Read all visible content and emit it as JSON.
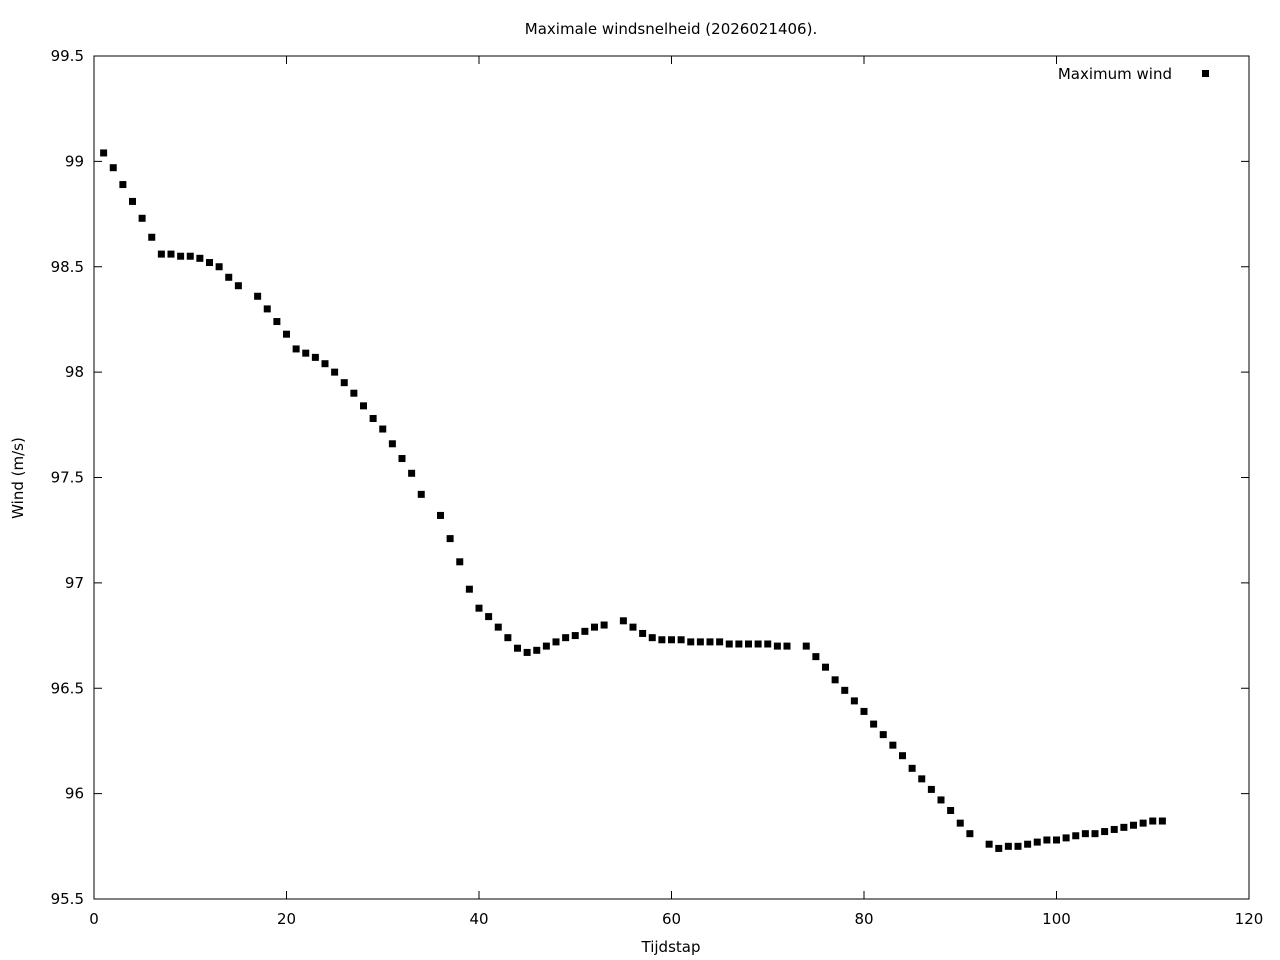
{
  "chart_data": {
    "type": "scatter",
    "title": "Maximale windsnelheid (2026021406).",
    "xlabel": "Tijdstap",
    "ylabel": "Wind (m/s)",
    "xlim": [
      0,
      120
    ],
    "ylim": [
      95.5,
      99.5
    ],
    "x_ticks": [
      "0",
      "20",
      "40",
      "60",
      "80",
      "100",
      "120"
    ],
    "y_ticks": [
      "95.5",
      "96",
      "96.5",
      "97",
      "97.5",
      "98",
      "98.5",
      "99",
      "99.5"
    ],
    "grid": false,
    "legend_position": "top-right",
    "series": [
      {
        "name": "Maximum wind",
        "marker": "square",
        "color": "#000000",
        "points": [
          [
            1,
            99.04
          ],
          [
            2,
            98.97
          ],
          [
            3,
            98.89
          ],
          [
            4,
            98.81
          ],
          [
            5,
            98.73
          ],
          [
            6,
            98.64
          ],
          [
            7,
            98.56
          ],
          [
            8,
            98.56
          ],
          [
            9,
            98.55
          ],
          [
            10,
            98.55
          ],
          [
            11,
            98.54
          ],
          [
            12,
            98.52
          ],
          [
            13,
            98.5
          ],
          [
            14,
            98.45
          ],
          [
            15,
            98.41
          ],
          [
            17,
            98.36
          ],
          [
            18,
            98.3
          ],
          [
            19,
            98.24
          ],
          [
            20,
            98.18
          ],
          [
            21,
            98.11
          ],
          [
            22,
            98.09
          ],
          [
            23,
            98.07
          ],
          [
            24,
            98.04
          ],
          [
            25,
            98.0
          ],
          [
            26,
            97.95
          ],
          [
            27,
            97.9
          ],
          [
            28,
            97.84
          ],
          [
            29,
            97.78
          ],
          [
            30,
            97.73
          ],
          [
            31,
            97.66
          ],
          [
            32,
            97.59
          ],
          [
            33,
            97.52
          ],
          [
            34,
            97.42
          ],
          [
            36,
            97.32
          ],
          [
            37,
            97.21
          ],
          [
            38,
            97.1
          ],
          [
            39,
            96.97
          ],
          [
            40,
            96.88
          ],
          [
            41,
            96.84
          ],
          [
            42,
            96.79
          ],
          [
            43,
            96.74
          ],
          [
            44,
            96.69
          ],
          [
            45,
            96.67
          ],
          [
            46,
            96.68
          ],
          [
            47,
            96.7
          ],
          [
            48,
            96.72
          ],
          [
            49,
            96.74
          ],
          [
            50,
            96.75
          ],
          [
            51,
            96.77
          ],
          [
            52,
            96.79
          ],
          [
            53,
            96.8
          ],
          [
            55,
            96.82
          ],
          [
            56,
            96.79
          ],
          [
            57,
            96.76
          ],
          [
            58,
            96.74
          ],
          [
            59,
            96.73
          ],
          [
            60,
            96.73
          ],
          [
            61,
            96.73
          ],
          [
            62,
            96.72
          ],
          [
            63,
            96.72
          ],
          [
            64,
            96.72
          ],
          [
            65,
            96.72
          ],
          [
            66,
            96.71
          ],
          [
            67,
            96.71
          ],
          [
            68,
            96.71
          ],
          [
            69,
            96.71
          ],
          [
            70,
            96.71
          ],
          [
            71,
            96.7
          ],
          [
            72,
            96.7
          ],
          [
            74,
            96.7
          ],
          [
            75,
            96.65
          ],
          [
            76,
            96.6
          ],
          [
            77,
            96.54
          ],
          [
            78,
            96.49
          ],
          [
            79,
            96.44
          ],
          [
            80,
            96.39
          ],
          [
            81,
            96.33
          ],
          [
            82,
            96.28
          ],
          [
            83,
            96.23
          ],
          [
            84,
            96.18
          ],
          [
            85,
            96.12
          ],
          [
            86,
            96.07
          ],
          [
            87,
            96.02
          ],
          [
            88,
            95.97
          ],
          [
            89,
            95.92
          ],
          [
            90,
            95.86
          ],
          [
            91,
            95.81
          ],
          [
            93,
            95.76
          ],
          [
            94,
            95.74
          ],
          [
            95,
            95.75
          ],
          [
            96,
            95.75
          ],
          [
            97,
            95.76
          ],
          [
            98,
            95.77
          ],
          [
            99,
            95.78
          ],
          [
            100,
            95.78
          ],
          [
            101,
            95.79
          ],
          [
            102,
            95.8
          ],
          [
            103,
            95.81
          ],
          [
            104,
            95.81
          ],
          [
            105,
            95.82
          ],
          [
            106,
            95.83
          ],
          [
            107,
            95.84
          ],
          [
            108,
            95.85
          ],
          [
            109,
            95.86
          ],
          [
            110,
            95.87
          ],
          [
            111,
            95.87
          ]
        ]
      }
    ]
  }
}
